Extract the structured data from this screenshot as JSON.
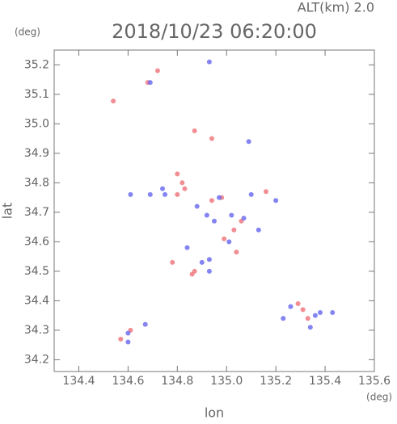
{
  "chart_data": {
    "type": "scatter",
    "title": "2018/10/23 06:20:00",
    "subtitle": "ALT(km) 2.0",
    "x_label": "lon",
    "y_label": "lat",
    "x_unit": "(deg)",
    "y_unit": "(deg)",
    "xlim": [
      134.3,
      135.6
    ],
    "ylim": [
      34.16,
      35.25
    ],
    "xticks": [
      134.4,
      134.6,
      134.8,
      {
        "value": 135,
        "label": "135.0"
      },
      135.2,
      135.4,
      135.6
    ],
    "yticks": [
      34.2,
      34.3,
      34.4,
      34.5,
      34.6,
      34.7,
      34.8,
      34.9,
      {
        "value": 35,
        "label": "35.0"
      },
      35.1,
      35.2
    ],
    "series": [
      {
        "color": "#f07a80",
        "x": [
          134.54,
          134.68,
          134.72,
          134.87,
          134.94,
          134.8,
          134.8,
          134.83,
          134.94,
          134.98,
          135.03,
          134.99,
          134.87,
          134.86,
          135.04,
          135.16,
          135.29,
          135.33,
          134.61,
          134.57,
          134.78,
          135.06,
          135.31,
          134.82
        ],
        "y": [
          35.077,
          35.14,
          35.18,
          34.976,
          34.95,
          34.83,
          34.76,
          34.78,
          34.74,
          34.75,
          34.64,
          34.61,
          34.5,
          34.49,
          34.565,
          34.77,
          34.39,
          34.34,
          34.3,
          34.27,
          34.53,
          34.67,
          34.37,
          34.8
        ]
      },
      {
        "color": "#6f6ff0",
        "x": [
          134.93,
          134.69,
          135.09,
          134.61,
          134.69,
          134.74,
          134.88,
          134.97,
          134.92,
          134.95,
          135.02,
          135.07,
          135.13,
          135.2,
          134.9,
          134.93,
          134.84,
          134.93,
          135.23,
          135.38,
          135.43,
          135.26,
          135.34,
          134.6,
          134.6,
          134.67,
          134.75,
          135.1,
          135.01,
          135.36
        ],
        "y": [
          35.21,
          35.14,
          34.94,
          34.76,
          34.76,
          34.78,
          34.72,
          34.75,
          34.69,
          34.67,
          34.69,
          34.68,
          34.64,
          34.74,
          34.53,
          34.54,
          34.58,
          34.5,
          34.34,
          34.36,
          34.36,
          34.38,
          34.31,
          34.26,
          34.29,
          34.32,
          34.76,
          34.76,
          34.6,
          34.35
        ]
      }
    ]
  }
}
